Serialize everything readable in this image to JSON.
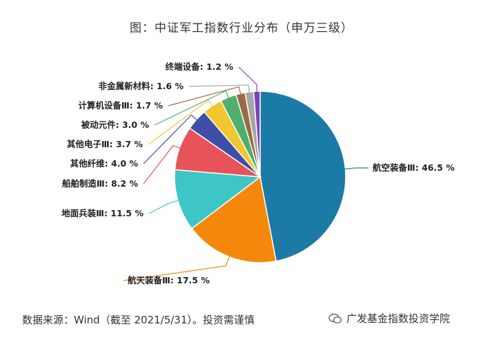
{
  "chart_data": {
    "type": "pie",
    "title": "图：中证军工指数行业分布（申万三级）",
    "slices": [
      {
        "label": "航空装备Ⅲ: 46.5 %",
        "value": 46.5,
        "color": "#1b7aa6"
      },
      {
        "label": "航天装备Ⅲ: 17.5 %",
        "value": 17.5,
        "color": "#f5880b"
      },
      {
        "label": "地面兵装Ⅲ: 11.5 %",
        "value": 11.5,
        "color": "#3ec5c5"
      },
      {
        "label": "船舶制造Ⅲ: 8.2 %",
        "value": 8.2,
        "color": "#e8535a"
      },
      {
        "label": "其他纤维: 4.0 %",
        "value": 4.0,
        "color": "#3f4ea6"
      },
      {
        "label": "其他电子Ⅲ: 3.7 %",
        "value": 3.7,
        "color": "#f2c631"
      },
      {
        "label": "被动元件: 3.0 %",
        "value": 3.0,
        "color": "#4faf6f"
      },
      {
        "label": "计算机设备Ⅲ: 1.7 %",
        "value": 1.7,
        "color": "#9a6a43"
      },
      {
        "label": "非金属新材料: 1.6 %",
        "value": 1.6,
        "color": "#a7a7a7"
      },
      {
        "label": "终端设备: 1.2 %",
        "value": 1.2,
        "color": "#7a45b8"
      }
    ]
  },
  "footer": {
    "source": "数据来源：Wind（截至 2021/5/31）。投资需谨慎",
    "watermark": "广发基金指数投资学院"
  }
}
